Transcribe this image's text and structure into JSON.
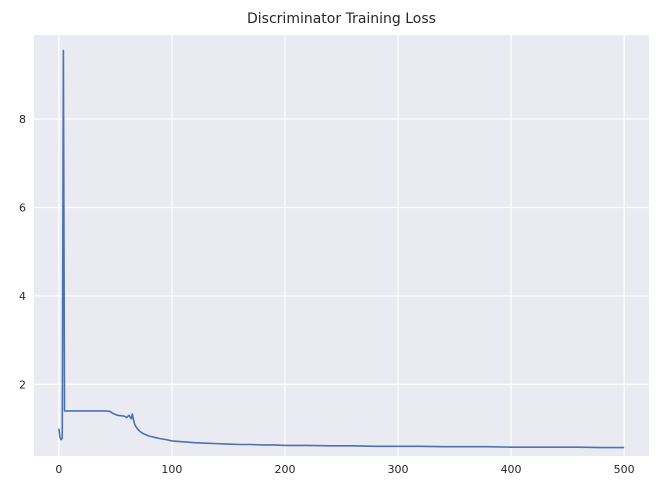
{
  "chart_data": {
    "type": "line",
    "title": "Discriminator Training Loss",
    "xlabel": "",
    "ylabel": "",
    "xlim": [
      -22,
      522
    ],
    "ylim": [
      0.38,
      9.9
    ],
    "xticks": [
      0,
      100,
      200,
      300,
      400,
      500
    ],
    "xtick_labels": [
      "0",
      "100",
      "200",
      "300",
      "400",
      "500"
    ],
    "yticks": [
      2,
      4,
      6,
      8
    ],
    "ytick_labels": [
      "2",
      "4",
      "6",
      "8"
    ],
    "grid": true,
    "legend": "none",
    "colors": {
      "axes_background": "#eaeaf2",
      "grid": "#ffffff",
      "line": "#4c72b0",
      "text": "#262626"
    },
    "series": [
      {
        "x": [
          0,
          1,
          2,
          3,
          4,
          5,
          6,
          10,
          20,
          30,
          40,
          45,
          48,
          52,
          55,
          58,
          60,
          62,
          64,
          65,
          66,
          67,
          68,
          70,
          72,
          75,
          78,
          80,
          85,
          90,
          95,
          100,
          110,
          120,
          130,
          140,
          150,
          160,
          170,
          180,
          190,
          200,
          220,
          240,
          260,
          280,
          300,
          320,
          340,
          360,
          380,
          400,
          420,
          440,
          460,
          480,
          500
        ],
        "y": [
          1.0,
          0.8,
          0.75,
          0.78,
          9.55,
          1.4,
          1.4,
          1.4,
          1.4,
          1.4,
          1.4,
          1.39,
          1.34,
          1.3,
          1.29,
          1.28,
          1.25,
          1.3,
          1.22,
          1.33,
          1.2,
          1.1,
          1.05,
          0.98,
          0.93,
          0.88,
          0.85,
          0.83,
          0.8,
          0.77,
          0.75,
          0.72,
          0.7,
          0.68,
          0.67,
          0.66,
          0.65,
          0.64,
          0.64,
          0.63,
          0.63,
          0.62,
          0.62,
          0.61,
          0.61,
          0.6,
          0.6,
          0.6,
          0.59,
          0.59,
          0.59,
          0.58,
          0.58,
          0.58,
          0.58,
          0.57,
          0.57
        ]
      }
    ]
  }
}
